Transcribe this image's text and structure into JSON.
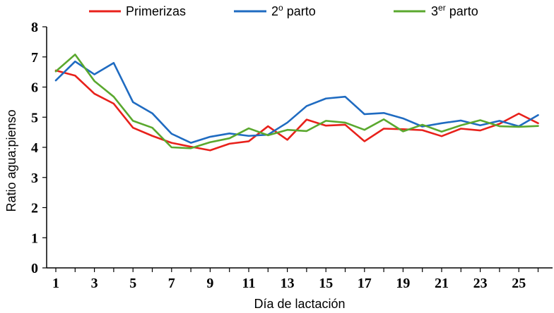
{
  "chart_data": {
    "type": "line",
    "xlabel": "Día de lactación",
    "ylabel": "Ratio agua:pienso",
    "ylim": [
      0,
      8
    ],
    "xlim": [
      1,
      26
    ],
    "y_ticks": [
      "0",
      "1",
      "2",
      "3",
      "4",
      "5",
      "6",
      "7",
      "8"
    ],
    "x_ticks": [
      "1",
      "3",
      "5",
      "7",
      "9",
      "11",
      "13",
      "15",
      "17",
      "19",
      "21",
      "23",
      "25"
    ],
    "x": [
      1,
      2,
      3,
      4,
      5,
      6,
      7,
      8,
      9,
      10,
      11,
      12,
      13,
      14,
      15,
      16,
      17,
      18,
      19,
      20,
      21,
      22,
      23,
      24,
      25,
      26
    ],
    "legend_position": "top",
    "series": [
      {
        "name": "Primerizas",
        "color": "#e8211b",
        "values": [
          6.55,
          6.38,
          5.78,
          5.45,
          4.65,
          4.38,
          4.15,
          4.02,
          3.9,
          4.12,
          4.2,
          4.7,
          4.25,
          4.92,
          4.72,
          4.75,
          4.2,
          4.62,
          4.6,
          4.57,
          4.37,
          4.62,
          4.56,
          4.78,
          5.12,
          4.8
        ]
      },
      {
        "name": "2º parto",
        "legend_main": "2",
        "legend_sup": "o",
        "legend_tail": " parto",
        "color": "#1f6bc1",
        "values": [
          6.22,
          6.85,
          6.42,
          6.8,
          5.5,
          5.13,
          4.45,
          4.15,
          4.35,
          4.46,
          4.38,
          4.42,
          4.82,
          5.37,
          5.62,
          5.68,
          5.1,
          5.14,
          4.96,
          4.69,
          4.8,
          4.89,
          4.73,
          4.88,
          4.7,
          5.07
        ]
      },
      {
        "name": "3er parto",
        "legend_main": "3",
        "legend_sup": "er",
        "legend_tail": " parto",
        "color": "#5aa82e",
        "values": [
          6.52,
          7.08,
          6.2,
          5.68,
          4.88,
          4.65,
          4.0,
          3.97,
          4.17,
          4.3,
          4.63,
          4.4,
          4.58,
          4.54,
          4.88,
          4.82,
          4.58,
          4.93,
          4.53,
          4.75,
          4.52,
          4.73,
          4.9,
          4.7,
          4.68,
          4.71
        ]
      }
    ]
  }
}
